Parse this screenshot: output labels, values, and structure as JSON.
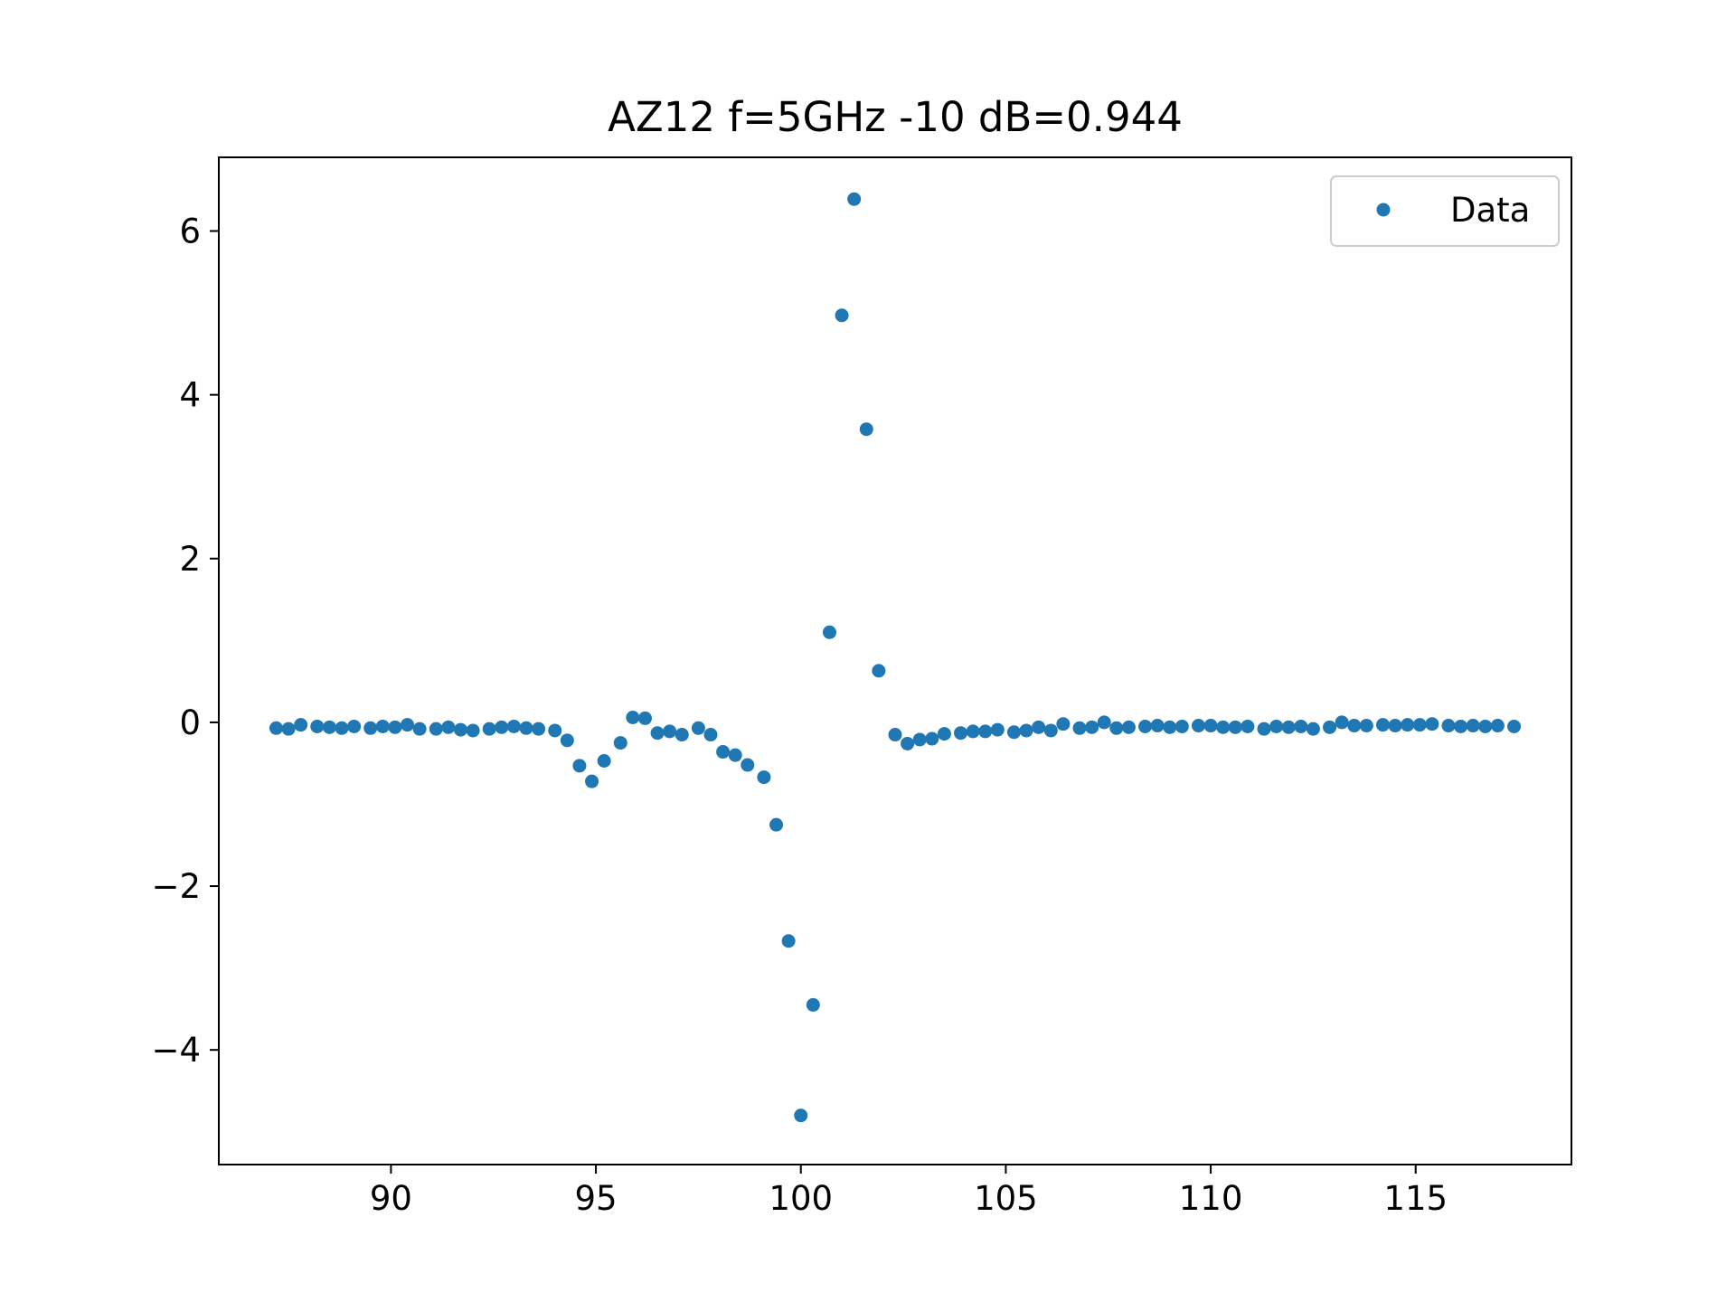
{
  "chart_data": {
    "type": "scatter",
    "title": "AZ12 f=5GHz -10 dB=0.944",
    "xlabel": "",
    "ylabel": "",
    "xlim": [
      85.8,
      118.8
    ],
    "ylim": [
      -5.4,
      6.9
    ],
    "xticks": [
      90,
      95,
      100,
      105,
      110,
      115
    ],
    "xtick_labels": [
      "90",
      "95",
      "100",
      "105",
      "110",
      "115"
    ],
    "yticks": [
      -4,
      -2,
      0,
      2,
      4,
      6
    ],
    "ytick_labels": [
      "−4",
      "−2",
      "0",
      "2",
      "4",
      "6"
    ],
    "grid": false,
    "legend": {
      "position": "top-right"
    },
    "marker_color": "#1f77b4",
    "series": [
      {
        "name": "Data",
        "x": [
          87.2,
          87.5,
          87.8,
          88.2,
          88.5,
          88.8,
          89.1,
          89.5,
          89.8,
          90.1,
          90.4,
          90.7,
          91.1,
          91.4,
          91.7,
          92.0,
          92.4,
          92.7,
          93.0,
          93.3,
          93.6,
          94.0,
          94.3,
          94.6,
          94.9,
          95.2,
          95.6,
          95.9,
          96.2,
          96.5,
          96.8,
          97.1,
          97.5,
          97.8,
          98.1,
          98.4,
          98.7,
          99.1,
          99.4,
          99.7,
          100.0,
          100.3,
          100.7,
          101.0,
          101.3,
          101.6,
          101.9,
          102.3,
          102.6,
          102.9,
          103.2,
          103.5,
          103.9,
          104.2,
          104.5,
          104.8,
          105.2,
          105.5,
          105.8,
          106.1,
          106.4,
          106.8,
          107.1,
          107.4,
          107.7,
          108.0,
          108.4,
          108.7,
          109.0,
          109.3,
          109.7,
          110.0,
          110.3,
          110.6,
          110.9,
          111.3,
          111.6,
          111.9,
          112.2,
          112.5,
          112.9,
          113.2,
          113.5,
          113.8,
          114.2,
          114.5,
          114.8,
          115.1,
          115.4,
          115.8,
          116.1,
          116.4,
          116.7,
          117.0,
          117.4
        ],
        "y": [
          -0.07,
          -0.08,
          -0.03,
          -0.05,
          -0.06,
          -0.07,
          -0.05,
          -0.07,
          -0.05,
          -0.06,
          -0.03,
          -0.08,
          -0.08,
          -0.06,
          -0.09,
          -0.1,
          -0.08,
          -0.06,
          -0.05,
          -0.07,
          -0.08,
          -0.1,
          -0.22,
          -0.53,
          -0.72,
          -0.47,
          -0.25,
          0.06,
          0.05,
          -0.13,
          -0.11,
          -0.15,
          -0.07,
          -0.15,
          -0.36,
          -0.4,
          -0.52,
          -0.67,
          -1.25,
          -2.67,
          -4.8,
          -3.45,
          1.1,
          4.97,
          6.39,
          3.58,
          0.63,
          -0.15,
          -0.26,
          -0.21,
          -0.2,
          -0.14,
          -0.13,
          -0.11,
          -0.11,
          -0.09,
          -0.12,
          -0.1,
          -0.06,
          -0.1,
          -0.02,
          -0.07,
          -0.06,
          0.0,
          -0.07,
          -0.06,
          -0.05,
          -0.04,
          -0.06,
          -0.05,
          -0.04,
          -0.04,
          -0.06,
          -0.06,
          -0.05,
          -0.08,
          -0.05,
          -0.06,
          -0.05,
          -0.08,
          -0.06,
          0.0,
          -0.04,
          -0.04,
          -0.03,
          -0.04,
          -0.03,
          -0.03,
          -0.02,
          -0.04,
          -0.05,
          -0.04,
          -0.05,
          -0.04,
          -0.05
        ]
      }
    ]
  }
}
